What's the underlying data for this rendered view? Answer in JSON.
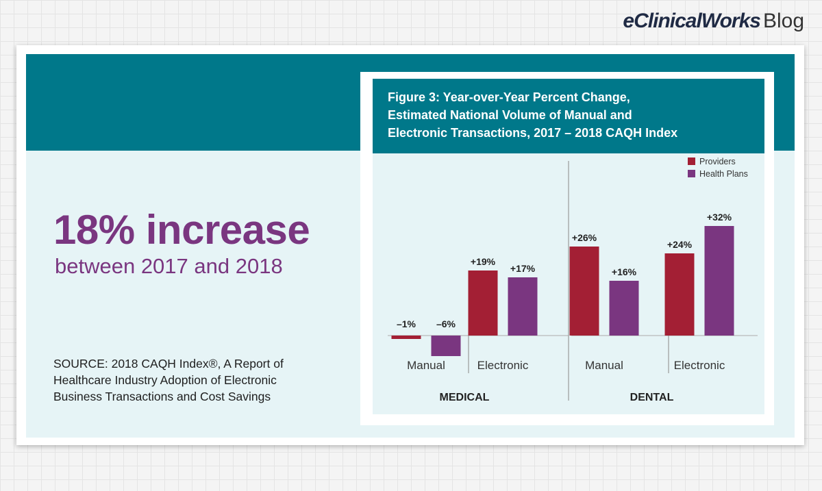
{
  "brand": {
    "name": "eClinicalWorks",
    "suffix": "Blog"
  },
  "headline": "18% increase",
  "subline": "between 2017 and 2018",
  "source": {
    "lines": [
      "SOURCE: 2018 CAQH Index®, A Report of",
      "Healthcare Industry Adoption of Electronic",
      "Business Transactions and Cost Savings"
    ]
  },
  "colors": {
    "providers": "#a31f34",
    "health_plans": "#7a3680",
    "teal": "#00788a"
  },
  "chart_data": {
    "type": "bar",
    "title_lines": [
      "Figure 3: Year-over-Year Percent Change,",
      "Estimated National Volume of Manual and",
      "Electronic Transactions, 2017 – 2018 CAQH Index"
    ],
    "groups": [
      "MEDICAL",
      "DENTAL"
    ],
    "categories": [
      "Manual",
      "Electronic",
      "Manual",
      "Electronic"
    ],
    "category_group": [
      0,
      0,
      1,
      1
    ],
    "series": [
      {
        "name": "Providers",
        "values": [
          -1,
          19,
          26,
          24
        ],
        "labels": [
          "–1%",
          "+19%",
          "+26%",
          "+24%"
        ]
      },
      {
        "name": "Health Plans",
        "values": [
          -6,
          17,
          16,
          32
        ],
        "labels": [
          "–6%",
          "+17%",
          "+16%",
          "+32%"
        ]
      }
    ],
    "unit": "%",
    "legend_position": "top-right",
    "grid": false
  }
}
